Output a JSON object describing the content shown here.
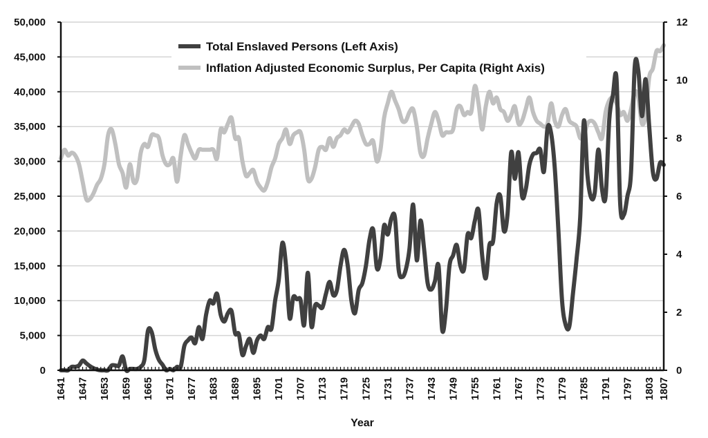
{
  "chart_data": {
    "type": "line",
    "title": "",
    "xlabel": "Year",
    "ylabel": "",
    "y2label": "",
    "xlim": [
      1641,
      1807
    ],
    "ylim": [
      0,
      50000
    ],
    "y2lim": [
      0,
      12
    ],
    "grid": true,
    "legend_placement": "top-center",
    "x_tick_labels": [
      "1641",
      "1647",
      "1653",
      "1659",
      "1665",
      "1671",
      "1677",
      "1683",
      "1689",
      "1695",
      "1701",
      "1707",
      "1713",
      "1719",
      "1725",
      "1731",
      "1737",
      "1743",
      "1749",
      "1755",
      "1761",
      "1767",
      "1773",
      "1779",
      "1785",
      "1791",
      "1797",
      "1803",
      "1807"
    ],
    "y_tick_labels": [
      "0",
      "5,000",
      "10,000",
      "15,000",
      "20,000",
      "25,000",
      "30,000",
      "35,000",
      "40,000",
      "45,000",
      "50,000"
    ],
    "y2_tick_labels": [
      "0",
      "2",
      "4",
      "6",
      "8",
      "10",
      "12"
    ],
    "series": [
      {
        "name": "Total Enslaved Persons (Left Axis)",
        "axis": "left",
        "color": "#404040",
        "values": [
          0,
          0,
          0,
          500,
          500,
          700,
          1400,
          1000,
          600,
          300,
          100,
          0,
          0,
          0,
          700,
          700,
          700,
          2000,
          0,
          200,
          200,
          200,
          500,
          1500,
          5700,
          5500,
          3000,
          1500,
          800,
          0,
          200,
          0,
          500,
          500,
          3500,
          4300,
          4700,
          3900,
          6200,
          4500,
          8000,
          10000,
          9600,
          11000,
          8000,
          7000,
          8200,
          8500,
          5300,
          5200,
          2200,
          3500,
          4500,
          2500,
          4300,
          5000,
          4500,
          6200,
          6000,
          10000,
          13000,
          18300,
          15000,
          7500,
          10500,
          10200,
          10100,
          6500,
          14000,
          6300,
          9300,
          9300,
          9000,
          11000,
          12700,
          10800,
          11500,
          15000,
          17300,
          15000,
          10000,
          8200,
          11500,
          12500,
          15000,
          18800,
          20200,
          14700,
          16000,
          20800,
          19500,
          21800,
          21900,
          14500,
          13400,
          14500,
          17500,
          23800,
          15800,
          21500,
          17500,
          12500,
          11600,
          12800,
          15000,
          5800,
          8500,
          15000,
          16500,
          18000,
          15000,
          14500,
          19500,
          19000,
          21500,
          23000,
          16500,
          13200,
          18000,
          18500,
          24000,
          25000,
          20000,
          22500,
          31300,
          27500,
          31300,
          25000,
          26000,
          29500,
          31000,
          31200,
          31700,
          28500,
          34800,
          34000,
          29000,
          20000,
          10000,
          6500,
          6300,
          11000,
          16000,
          22000,
          35800,
          28000,
          24800,
          25500,
          31700,
          26000,
          25000,
          36000,
          39500,
          41800,
          24000,
          22300,
          25000,
          28500,
          43500,
          43000,
          36500,
          41800,
          35000,
          28500,
          27500,
          29800,
          29500
        ]
      },
      {
        "name": "Inflation Adjusted Economic Surplus, Per Capita (Right Axis)",
        "axis": "right",
        "color": "#c0c0c0",
        "values": [
          7.3,
          7.6,
          7.4,
          7.5,
          7.4,
          7.1,
          6.5,
          5.9,
          5.9,
          6.1,
          6.4,
          6.6,
          7.1,
          8.1,
          8.3,
          7.8,
          7.1,
          6.8,
          6.3,
          7.1,
          6.5,
          6.6,
          7.5,
          7.8,
          7.7,
          8.1,
          8.1,
          8.0,
          7.4,
          7.1,
          7.1,
          7.3,
          6.5,
          7.4,
          8.1,
          7.8,
          7.5,
          7.3,
          7.6,
          7.6,
          7.6,
          7.6,
          7.6,
          7.3,
          8.3,
          8.2,
          8.5,
          8.7,
          8.0,
          8.0,
          7.2,
          6.7,
          6.8,
          6.9,
          6.5,
          6.3,
          6.2,
          6.5,
          7.0,
          7.3,
          7.8,
          8.0,
          8.3,
          7.8,
          8.1,
          8.2,
          8.2,
          7.6,
          6.6,
          6.6,
          7.0,
          7.6,
          7.7,
          7.6,
          8.0,
          7.7,
          8.0,
          8.1,
          8.3,
          8.2,
          8.4,
          8.6,
          8.5,
          8.1,
          7.8,
          7.8,
          7.9,
          7.2,
          7.6,
          8.7,
          9.2,
          9.6,
          9.3,
          9.0,
          8.6,
          8.6,
          8.9,
          9.0,
          8.4,
          7.5,
          7.4,
          8.0,
          8.5,
          8.9,
          8.6,
          8.1,
          8.2,
          8.2,
          8.3,
          9.0,
          9.1,
          8.8,
          8.9,
          8.9,
          9.8,
          9.2,
          8.3,
          9.1,
          9.6,
          9.2,
          9.4,
          9.0,
          8.9,
          8.6,
          8.8,
          9.1,
          8.5,
          8.6,
          9.0,
          9.4,
          8.9,
          8.6,
          8.5,
          8.4,
          8.5,
          9.2,
          8.6,
          8.4,
          8.8,
          9.0,
          8.6,
          8.5,
          8.4,
          8.0,
          8.1,
          8.5,
          8.6,
          8.5,
          8.2,
          8.0,
          8.9,
          9.3,
          9.4,
          9.2,
          8.8,
          8.9,
          8.6,
          9.0,
          9.6,
          9.4,
          8.5,
          8.8,
          10.1,
          10.4,
          11.0,
          11.0,
          11.2
        ]
      }
    ]
  }
}
